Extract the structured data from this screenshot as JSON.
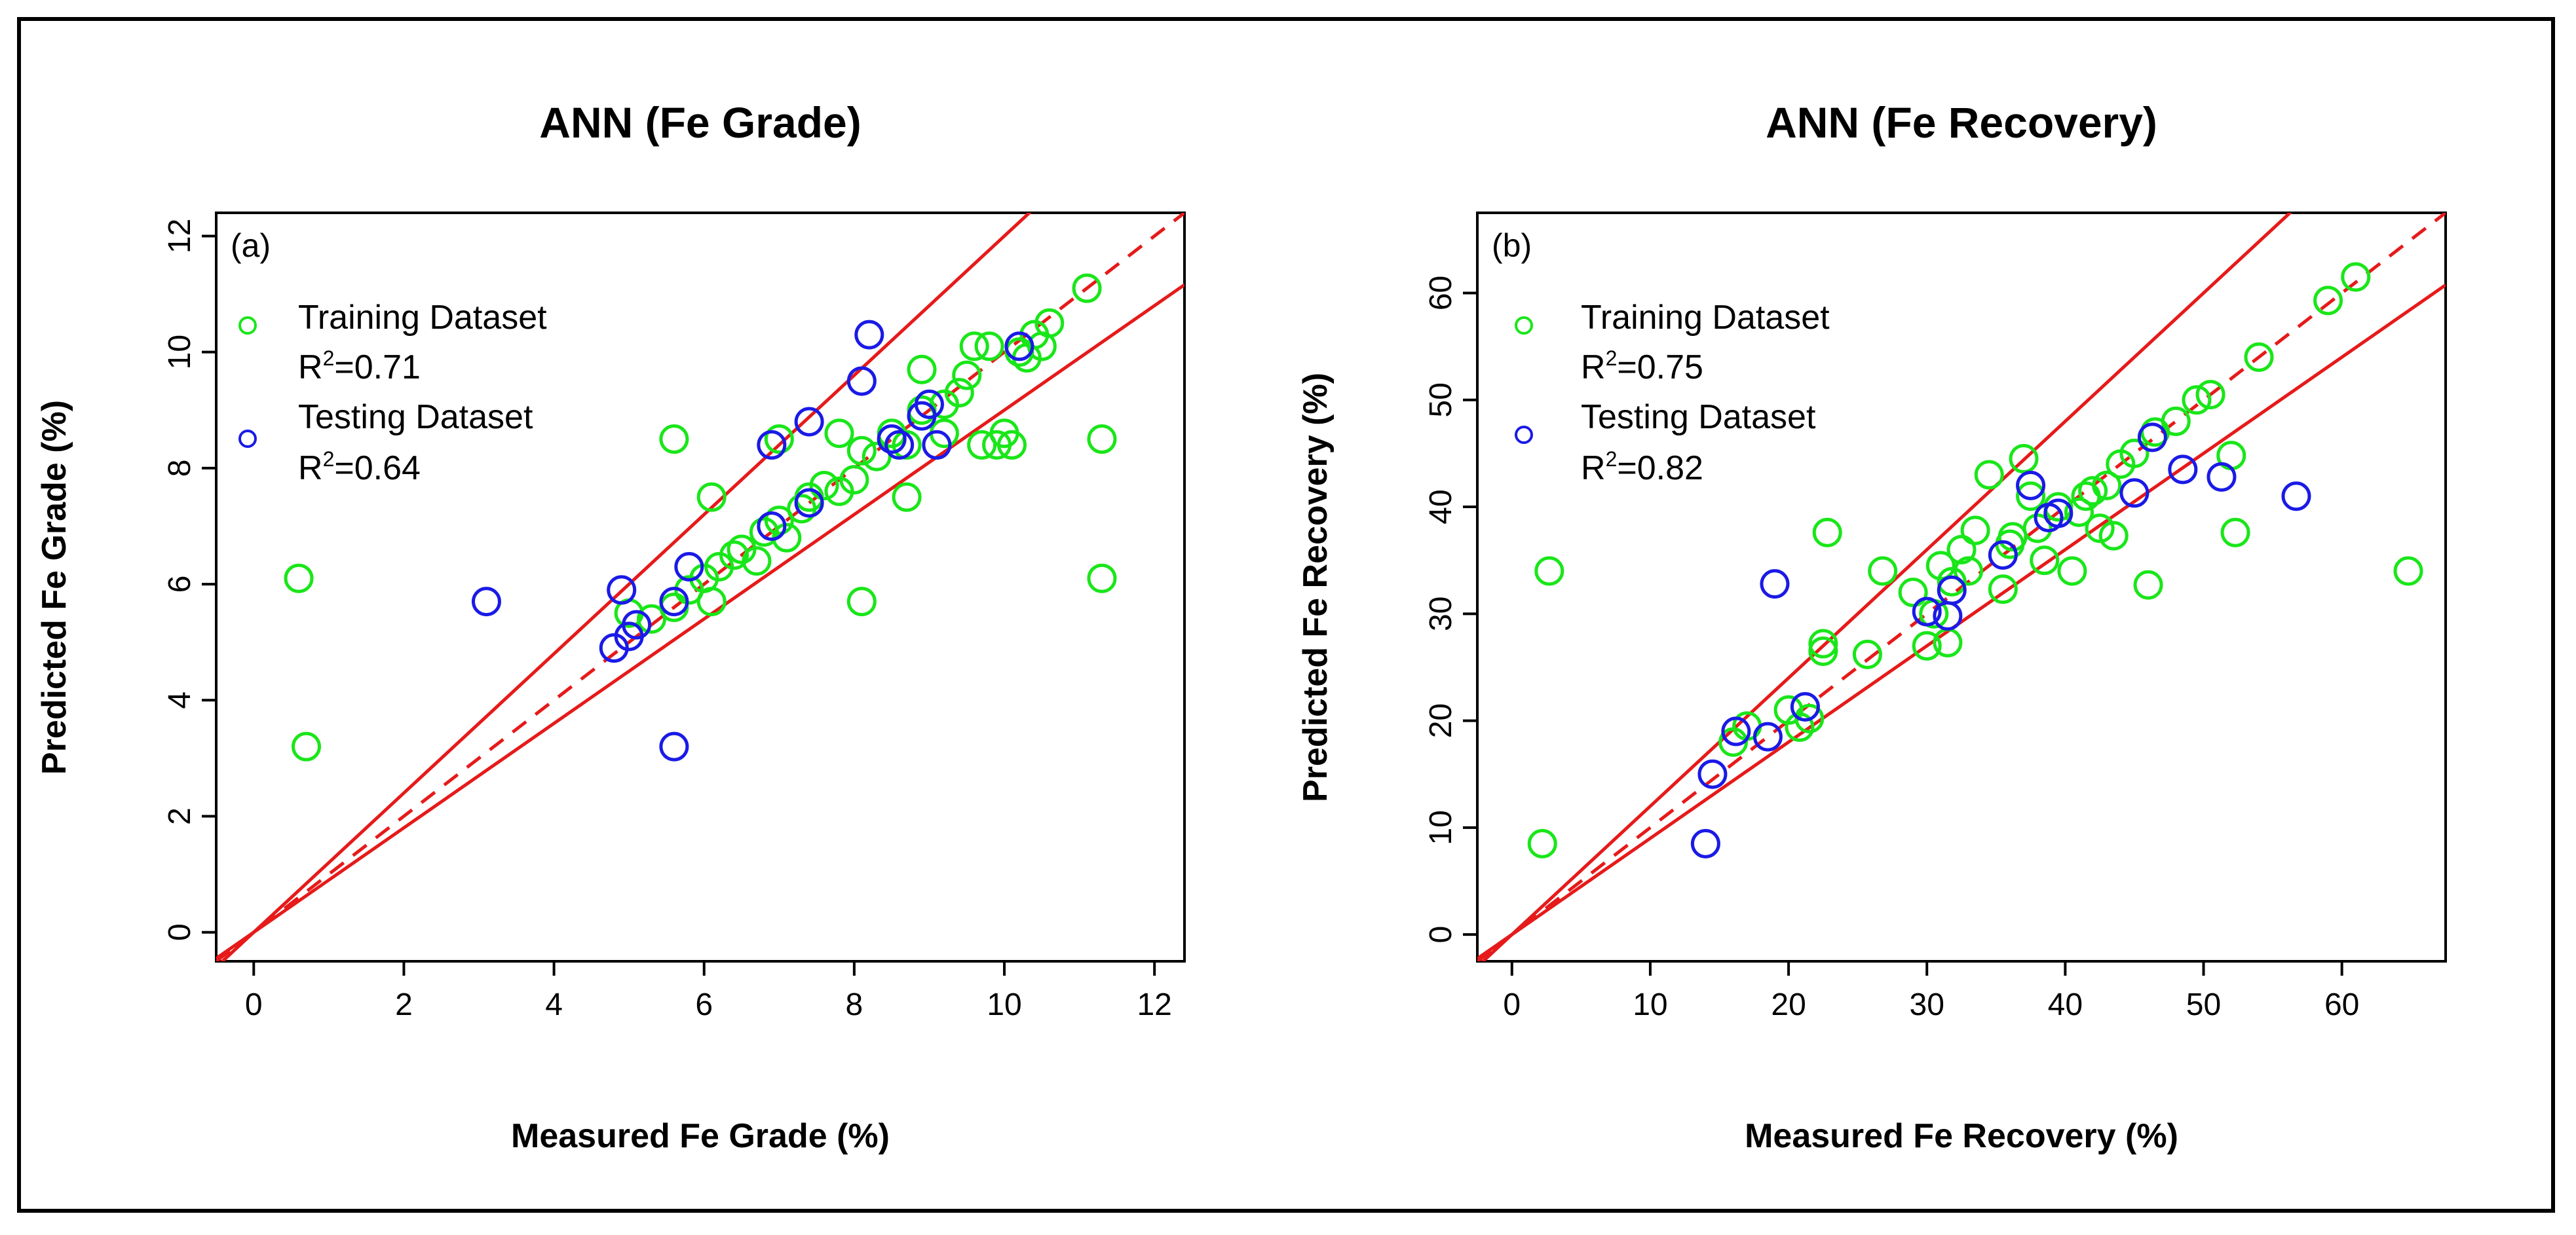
{
  "chart_data": [
    {
      "type": "scatter",
      "panel_label": "(a)",
      "title": "ANN (Fe Grade)",
      "xlabel": "Measured Fe Grade (%)",
      "ylabel": "Predicted Fe Grade (%)",
      "xlim": [
        -0.5,
        12.4
      ],
      "ylim": [
        -0.5,
        12.4
      ],
      "xticks": [
        0,
        2,
        4,
        6,
        8,
        10,
        12
      ],
      "yticks": [
        0,
        2,
        4,
        6,
        8,
        10,
        12
      ],
      "ref_lines": {
        "identity_dashed": 1.0,
        "upper_bound": 1.2,
        "lower_bound": 0.9
      },
      "legend": [
        {
          "marker": "o",
          "name": "Training Dataset",
          "r2_label": "R",
          "r2_sup": "2",
          "r2_value": "=0.71",
          "color": "#19e619"
        },
        {
          "marker": "o",
          "name": "Testing Dataset",
          "r2_label": "R",
          "r2_sup": "2",
          "r2_value": "=0.64",
          "color": "#1a1ae6"
        }
      ],
      "series": [
        {
          "name": "Training Dataset",
          "color": "#19e619",
          "points": [
            [
              0.6,
              6.1
            ],
            [
              0.7,
              3.2
            ],
            [
              5.0,
              5.5
            ],
            [
              5.3,
              5.4
            ],
            [
              5.6,
              5.6
            ],
            [
              5.8,
              5.9
            ],
            [
              6.0,
              6.1
            ],
            [
              6.2,
              6.3
            ],
            [
              6.5,
              6.6
            ],
            [
              6.7,
              6.4
            ],
            [
              6.8,
              6.9
            ],
            [
              7.0,
              7.1
            ],
            [
              7.1,
              6.8
            ],
            [
              7.4,
              7.5
            ],
            [
              7.6,
              7.7
            ],
            [
              7.8,
              7.6
            ],
            [
              8.0,
              7.8
            ],
            [
              8.1,
              8.3
            ],
            [
              8.3,
              8.2
            ],
            [
              8.5,
              8.6
            ],
            [
              8.7,
              8.4
            ],
            [
              8.9,
              9.0
            ],
            [
              9.2,
              9.1
            ],
            [
              9.4,
              9.3
            ],
            [
              9.5,
              9.6
            ],
            [
              9.7,
              8.4
            ],
            [
              9.9,
              8.4
            ],
            [
              10.0,
              8.6
            ],
            [
              10.1,
              8.4
            ],
            [
              10.2,
              10.0
            ],
            [
              10.3,
              9.9
            ],
            [
              10.4,
              10.3
            ],
            [
              10.6,
              10.5
            ],
            [
              9.8,
              10.1
            ],
            [
              10.5,
              10.1
            ],
            [
              11.1,
              11.1
            ],
            [
              11.3,
              8.5
            ],
            [
              11.3,
              6.1
            ],
            [
              5.6,
              8.5
            ],
            [
              6.1,
              7.5
            ],
            [
              7.0,
              8.5
            ],
            [
              7.8,
              8.6
            ],
            [
              8.1,
              5.7
            ],
            [
              8.7,
              7.5
            ],
            [
              6.1,
              5.7
            ],
            [
              9.6,
              10.1
            ],
            [
              9.2,
              8.6
            ],
            [
              8.9,
              9.7
            ],
            [
              7.3,
              7.3
            ],
            [
              6.4,
              6.5
            ]
          ]
        },
        {
          "name": "Testing Dataset",
          "color": "#1a1ae6",
          "points": [
            [
              3.1,
              5.7
            ],
            [
              4.8,
              4.9
            ],
            [
              4.9,
              5.9
            ],
            [
              5.0,
              5.1
            ],
            [
              5.1,
              5.3
            ],
            [
              5.6,
              5.7
            ],
            [
              5.6,
              3.2
            ],
            [
              5.8,
              6.3
            ],
            [
              6.9,
              8.4
            ],
            [
              6.9,
              7.0
            ],
            [
              7.4,
              8.8
            ],
            [
              7.4,
              7.4
            ],
            [
              8.1,
              9.5
            ],
            [
              8.2,
              10.3
            ],
            [
              8.5,
              8.5
            ],
            [
              8.6,
              8.4
            ],
            [
              8.9,
              8.9
            ],
            [
              9.1,
              8.4
            ],
            [
              9.0,
              9.1
            ],
            [
              10.2,
              10.1
            ]
          ]
        }
      ]
    },
    {
      "type": "scatter",
      "panel_label": "(b)",
      "title": "ANN (Fe Recovery)",
      "xlabel": "Measured Fe Recovery (%)",
      "ylabel": "Predicted Fe Recovery (%)",
      "xlim": [
        -2.5,
        67.5
      ],
      "ylim": [
        -2.5,
        67.5
      ],
      "xticks": [
        0,
        10,
        20,
        30,
        40,
        50,
        60
      ],
      "yticks": [
        0,
        10,
        20,
        30,
        40,
        50,
        60
      ],
      "ref_lines": {
        "identity_dashed": 1.0,
        "upper_bound": 1.2,
        "lower_bound": 0.9
      },
      "legend": [
        {
          "marker": "o",
          "name": "Training Dataset",
          "r2_label": "R",
          "r2_sup": "2",
          "r2_value": "=0.75",
          "color": "#19e619"
        },
        {
          "marker": "o",
          "name": "Testing Dataset",
          "r2_label": "R",
          "r2_sup": "2",
          "r2_value": "=0.82",
          "color": "#1a1ae6"
        }
      ],
      "series": [
        {
          "name": "Training Dataset",
          "color": "#19e619",
          "points": [
            [
              2.2,
              8.5
            ],
            [
              2.7,
              34.0
            ],
            [
              16.0,
              18.0
            ],
            [
              17.0,
              19.5
            ],
            [
              20.8,
              19.4
            ],
            [
              21.5,
              20.2
            ],
            [
              22.5,
              27.2
            ],
            [
              22.5,
              26.5
            ],
            [
              22.8,
              37.6
            ],
            [
              25.7,
              26.2
            ],
            [
              26.8,
              34.0
            ],
            [
              29.0,
              32.0
            ],
            [
              30.0,
              27.0
            ],
            [
              31.0,
              34.5
            ],
            [
              31.5,
              27.3
            ],
            [
              32.5,
              36.0
            ],
            [
              33.5,
              37.8
            ],
            [
              34.5,
              43.0
            ],
            [
              35.5,
              32.3
            ],
            [
              36.0,
              36.5
            ],
            [
              37.0,
              44.5
            ],
            [
              38.0,
              38.0
            ],
            [
              38.5,
              35.0
            ],
            [
              39.5,
              40.0
            ],
            [
              40.5,
              34.0
            ],
            [
              41.0,
              39.5
            ],
            [
              42.0,
              41.5
            ],
            [
              42.5,
              38.0
            ],
            [
              43.0,
              42.0
            ],
            [
              43.5,
              37.3
            ],
            [
              44.0,
              44.0
            ],
            [
              45.0,
              45.0
            ],
            [
              46.0,
              32.7
            ],
            [
              46.5,
              47.0
            ],
            [
              48.0,
              48.0
            ],
            [
              49.5,
              50.0
            ],
            [
              50.5,
              50.5
            ],
            [
              52.0,
              44.8
            ],
            [
              52.3,
              37.6
            ],
            [
              54.0,
              54.0
            ],
            [
              59.0,
              59.3
            ],
            [
              61.0,
              61.5
            ],
            [
              64.8,
              34.0
            ],
            [
              31.8,
              33.0
            ],
            [
              37.5,
              41.0
            ],
            [
              41.5,
              41.0
            ],
            [
              30.5,
              30.0
            ],
            [
              36.2,
              37.2
            ],
            [
              20.0,
              21.0
            ],
            [
              33.0,
              34.0
            ]
          ]
        },
        {
          "name": "Testing Dataset",
          "color": "#1a1ae6",
          "points": [
            [
              14.0,
              8.5
            ],
            [
              14.5,
              15.0
            ],
            [
              16.2,
              19.0
            ],
            [
              18.5,
              18.5
            ],
            [
              19.0,
              32.8
            ],
            [
              21.2,
              21.3
            ],
            [
              30.0,
              30.2
            ],
            [
              31.5,
              29.8
            ],
            [
              31.8,
              32.2
            ],
            [
              35.5,
              35.5
            ],
            [
              37.5,
              42.0
            ],
            [
              38.8,
              39.0
            ],
            [
              39.5,
              39.4
            ],
            [
              45.0,
              41.3
            ],
            [
              46.3,
              46.5
            ],
            [
              48.5,
              43.5
            ],
            [
              51.3,
              42.8
            ],
            [
              56.7,
              41.0
            ]
          ]
        }
      ]
    }
  ]
}
